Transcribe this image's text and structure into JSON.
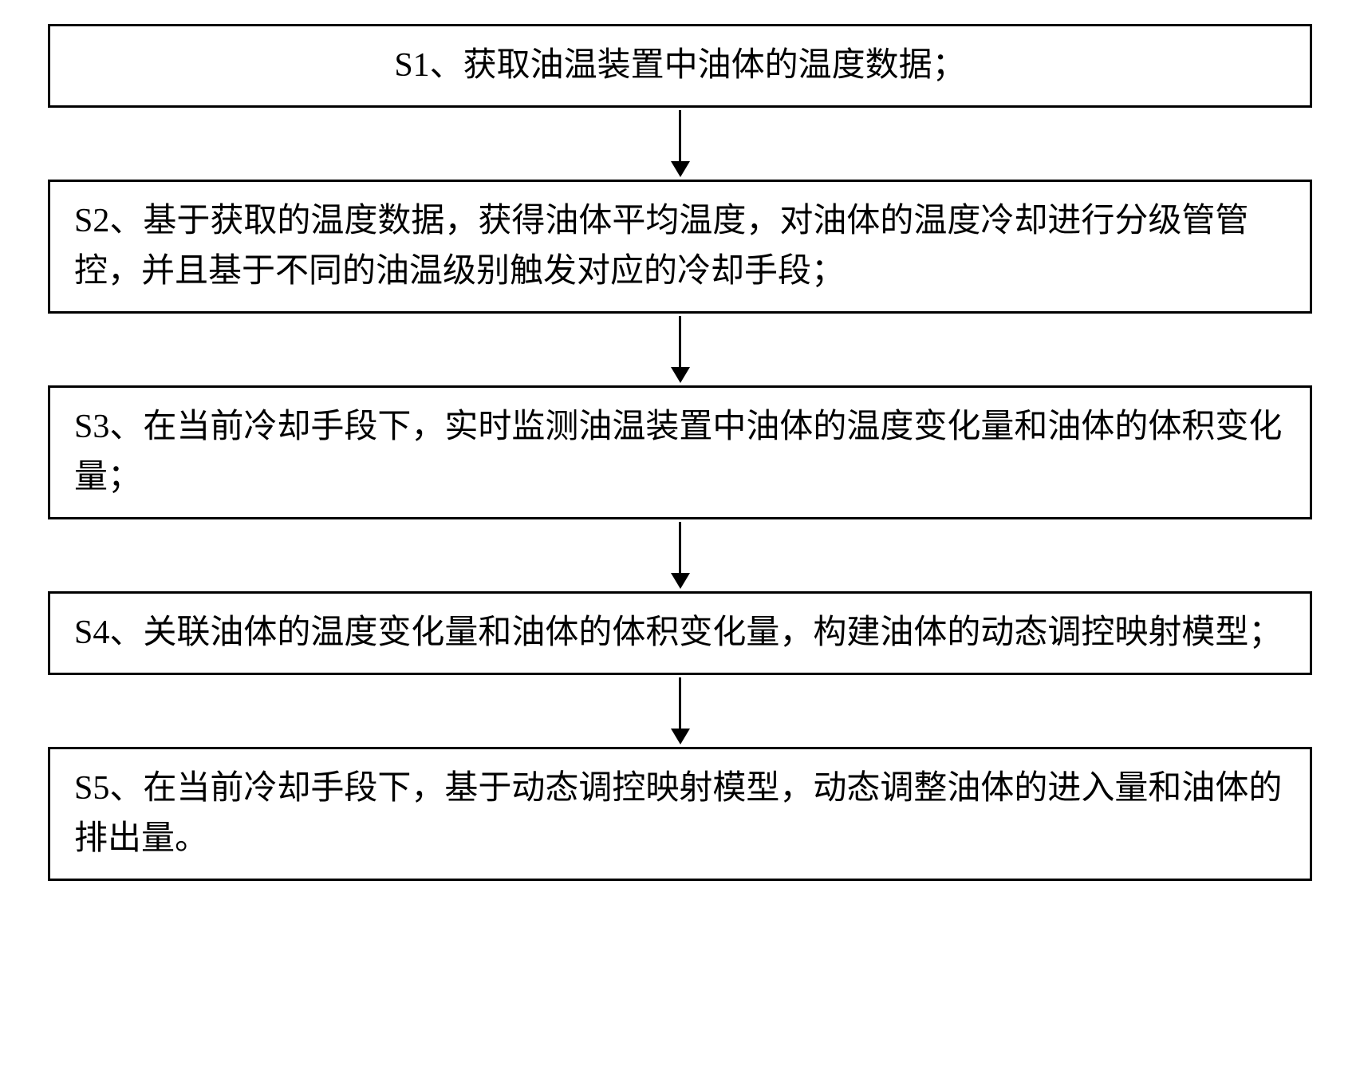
{
  "flowchart": {
    "type": "flowchart",
    "direction": "vertical",
    "background_color": "#ffffff",
    "border_color": "#000000",
    "border_width": 3,
    "text_color": "#000000",
    "font_size": 42,
    "font_family": "SimSun",
    "arrow_color": "#000000",
    "arrow_line_width": 3,
    "box_width_ratio": 1.0,
    "steps": [
      {
        "id": "s1",
        "text": "S1、获取油温装置中油体的温度数据；",
        "alignment": "center"
      },
      {
        "id": "s2",
        "text": "S2、基于获取的温度数据，获得油体平均温度，对油体的温度冷却进行分级管管控，并且基于不同的油温级别触发对应的冷却手段；",
        "alignment": "left"
      },
      {
        "id": "s3",
        "text": "S3、在当前冷却手段下，实时监测油温装置中油体的温度变化量和油体的体积变化量；",
        "alignment": "left"
      },
      {
        "id": "s4",
        "text": "S4、关联油体的温度变化量和油体的体积变化量，构建油体的动态调控映射模型；",
        "alignment": "left"
      },
      {
        "id": "s5",
        "text": "S5、在当前冷却手段下，基于动态调控映射模型，动态调整油体的进入量和油体的排出量。",
        "alignment": "left"
      }
    ],
    "edges": [
      {
        "from": "s1",
        "to": "s2"
      },
      {
        "from": "s2",
        "to": "s3"
      },
      {
        "from": "s3",
        "to": "s4"
      },
      {
        "from": "s4",
        "to": "s5"
      }
    ]
  }
}
